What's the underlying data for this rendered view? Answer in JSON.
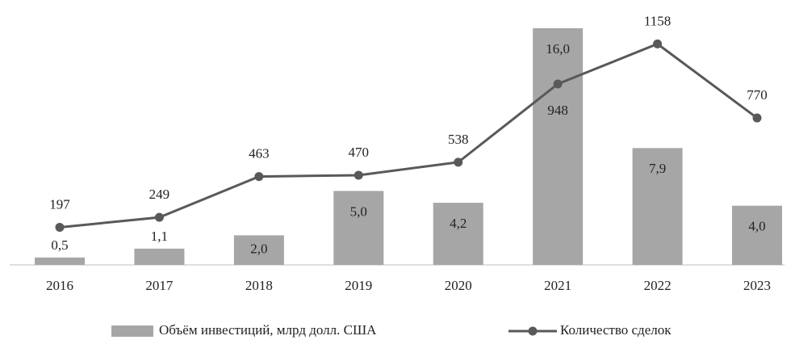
{
  "chart_data": {
    "type": "bar_line",
    "categories": [
      "2016",
      "2017",
      "2018",
      "2019",
      "2020",
      "2021",
      "2022",
      "2023"
    ],
    "series": [
      {
        "name": "Объём инвестиций, млрд долл. США",
        "type": "bar",
        "color": "#a6a6a6",
        "values": [
          0.5,
          1.1,
          2.0,
          5.0,
          4.2,
          16.0,
          7.9,
          4.0
        ],
        "value_labels": [
          "0,5",
          "1,1",
          "2,0",
          "5,0",
          "4,2",
          "16,0",
          "7,9",
          "4,0"
        ]
      },
      {
        "name": "Количество сделок",
        "type": "line",
        "color": "#595959",
        "axis": "y2",
        "values": [
          197,
          249,
          463,
          470,
          538,
          948,
          1158,
          770
        ]
      }
    ],
    "ylim": [
      0,
      16
    ],
    "y2lim": [
      0,
      1240
    ],
    "grid": false,
    "legend": "bottom"
  }
}
